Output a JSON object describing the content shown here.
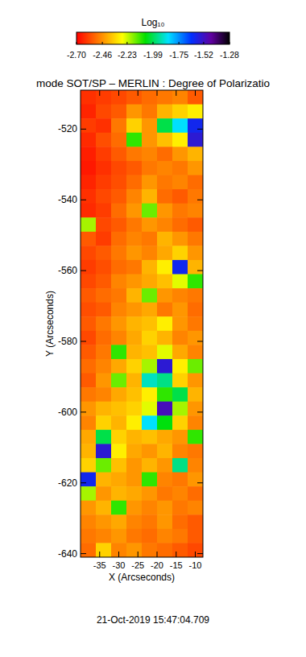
{
  "chart_data": {
    "type": "heatmap",
    "title": "mode SOT/SP – MERLIN : Degree of Polarizatio",
    "x_label": "X (Arcseconds)",
    "y_label": "Y (Arcseconds)",
    "annotation": "21-Oct-2019 15:47:04.709",
    "xlim": [
      -40,
      -8
    ],
    "ylim": [
      -641,
      -509
    ],
    "xticks": [
      -35,
      -30,
      -25,
      -20,
      -15,
      -10
    ],
    "yticks": [
      -520,
      -540,
      -560,
      -580,
      -600,
      -620,
      -640
    ],
    "x": [
      -38,
      -34,
      -30,
      -26,
      -22,
      -18,
      -14,
      -10
    ],
    "y": [
      -511,
      -515,
      -519,
      -523,
      -527,
      -531,
      -535,
      -539,
      -543,
      -547,
      -551,
      -555,
      -559,
      -563,
      -567,
      -571,
      -575,
      -579,
      -583,
      -587,
      -591,
      -595,
      -599,
      -603,
      -607,
      -611,
      -615,
      -619,
      -623,
      -627,
      -631,
      -635,
      -639
    ],
    "cells": [
      [
        -2.62,
        -2.6,
        -2.58,
        -2.55,
        -2.52,
        -2.5,
        -2.48,
        -2.55
      ],
      [
        -2.64,
        -2.58,
        -2.55,
        -2.45,
        -2.5,
        -2.4,
        -2.35,
        -2.3
      ],
      [
        -2.6,
        -2.62,
        -2.5,
        -2.35,
        -2.45,
        -2.0,
        -1.85,
        -1.6
      ],
      [
        -2.63,
        -2.57,
        -2.52,
        -2.1,
        -2.45,
        -2.38,
        -2.3,
        -1.55
      ],
      [
        -2.65,
        -2.6,
        -2.55,
        -2.5,
        -2.48,
        -2.52,
        -2.45,
        -2.4
      ],
      [
        -2.66,
        -2.62,
        -2.58,
        -2.55,
        -2.5,
        -2.48,
        -2.5,
        -2.45
      ],
      [
        -2.64,
        -2.6,
        -2.57,
        -2.52,
        -2.45,
        -2.5,
        -2.48,
        -2.52
      ],
      [
        -2.62,
        -2.58,
        -2.55,
        -2.48,
        -2.4,
        -2.52,
        -2.55,
        -2.5
      ],
      [
        -2.63,
        -2.6,
        -2.52,
        -2.45,
        -2.15,
        -2.45,
        -2.5,
        -2.48
      ],
      [
        -2.2,
        -2.58,
        -2.55,
        -2.5,
        -2.45,
        -2.48,
        -2.52,
        -2.55
      ],
      [
        -2.55,
        -2.6,
        -2.52,
        -2.48,
        -2.5,
        -2.4,
        -2.45,
        -2.5
      ],
      [
        -2.58,
        -2.55,
        -2.5,
        -2.45,
        -2.48,
        -2.42,
        -2.35,
        -2.45
      ],
      [
        -2.6,
        -2.57,
        -2.52,
        -2.5,
        -2.4,
        -2.3,
        -1.6,
        -2.4
      ],
      [
        -2.58,
        -2.55,
        -2.48,
        -2.45,
        -2.42,
        -2.38,
        -2.25,
        -2.1
      ],
      [
        -2.55,
        -2.52,
        -2.5,
        -2.4,
        -2.15,
        -2.45,
        -2.48,
        -2.5
      ],
      [
        -2.57,
        -2.55,
        -2.48,
        -2.45,
        -2.42,
        -2.5,
        -2.45,
        -2.52
      ],
      [
        -2.55,
        -2.5,
        -2.45,
        -2.4,
        -2.38,
        -2.3,
        -2.45,
        -2.5
      ],
      [
        -2.58,
        -2.52,
        -2.48,
        -2.42,
        -2.35,
        -2.4,
        -2.48,
        -2.45
      ],
      [
        -2.55,
        -2.5,
        -2.1,
        -2.4,
        -2.38,
        -2.25,
        -2.42,
        -2.48
      ],
      [
        -2.52,
        -2.48,
        -2.42,
        -2.35,
        -2.2,
        -1.55,
        -2.3,
        -2.15
      ],
      [
        -2.55,
        -2.45,
        -2.15,
        -2.4,
        -1.9,
        -1.95,
        -2.35,
        -2.45
      ],
      [
        -2.5,
        -2.48,
        -2.42,
        -2.38,
        -2.3,
        -2.1,
        -2.0,
        -2.4
      ],
      [
        -2.45,
        -2.4,
        -2.38,
        -2.35,
        -2.25,
        -1.5,
        -2.2,
        -2.45
      ],
      [
        -2.48,
        -2.35,
        -2.4,
        -2.3,
        -1.85,
        -2.05,
        -2.35,
        -2.48
      ],
      [
        -2.42,
        -2.0,
        -2.35,
        -2.4,
        -2.38,
        -2.42,
        -2.45,
        -2.1
      ],
      [
        -2.4,
        -1.55,
        -2.3,
        -2.42,
        -2.45,
        -2.4,
        -2.48,
        -2.5
      ],
      [
        -2.35,
        -2.15,
        -2.38,
        -2.45,
        -2.4,
        -2.45,
        -1.95,
        -2.48
      ],
      [
        -1.6,
        -2.4,
        -2.42,
        -2.45,
        -2.1,
        -2.48,
        -2.5,
        -2.45
      ],
      [
        -2.2,
        -2.45,
        -2.4,
        -2.42,
        -2.45,
        -2.5,
        -2.48,
        -2.52
      ],
      [
        -2.45,
        -2.4,
        -2.1,
        -2.45,
        -2.48,
        -2.45,
        -2.5,
        -2.48
      ],
      [
        -2.48,
        -2.45,
        -2.42,
        -2.48,
        -2.5,
        -2.45,
        -2.52,
        -2.55
      ],
      [
        -2.5,
        -2.48,
        -2.45,
        -2.5,
        -2.52,
        -2.48,
        -2.5,
        -2.55
      ],
      [
        -2.52,
        -2.35,
        -2.48,
        -2.45,
        -2.5,
        -2.52,
        -2.55,
        -2.58
      ]
    ],
    "colorbar_label": "Log₁₀",
    "colorbar_range": [
      -2.7,
      -1.28
    ],
    "colorbar_ticks": [
      {
        "value": -2.7,
        "label": "-2.70"
      },
      -2.46,
      -2.23,
      -1.99,
      -1.75,
      -1.52,
      -1.28
    ]
  }
}
